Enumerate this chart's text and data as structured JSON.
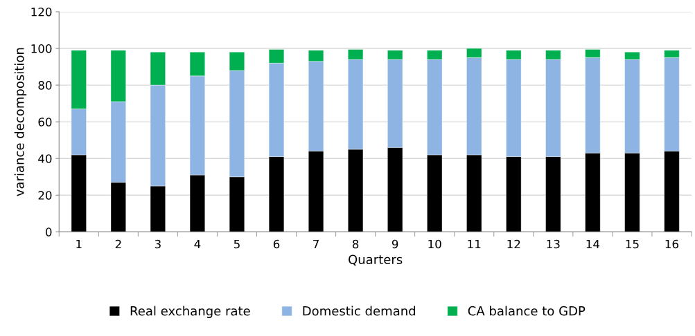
{
  "chart_data": {
    "type": "bar",
    "stacked": true,
    "xlabel": "Quarters",
    "ylabel": "variance decomposition",
    "categories": [
      "1",
      "2",
      "3",
      "4",
      "5",
      "6",
      "7",
      "8",
      "9",
      "10",
      "11",
      "12",
      "13",
      "14",
      "15",
      "16"
    ],
    "series": [
      {
        "name": "Real exchange rate",
        "color": "#000000",
        "values": [
          42,
          27,
          25,
          31,
          30,
          41,
          44,
          45,
          46,
          42,
          42,
          41,
          41,
          43,
          43,
          44
        ]
      },
      {
        "name": "Domestic demand",
        "color": "#8eb4e3",
        "values": [
          25,
          44,
          55,
          54,
          58,
          51,
          49,
          49,
          48,
          52,
          53,
          53,
          53,
          52,
          51,
          51
        ]
      },
      {
        "name": "CA balance to GDP",
        "color": "#00b050",
        "values": [
          32,
          28,
          18,
          13,
          10,
          7.5,
          6,
          5.5,
          5,
          5,
          5,
          5,
          5,
          4.5,
          4,
          4
        ]
      }
    ],
    "ylim": [
      0,
      120
    ],
    "yticks": [
      0,
      20,
      40,
      60,
      80,
      100,
      120
    ],
    "grid": "y",
    "legend": "bottom"
  }
}
